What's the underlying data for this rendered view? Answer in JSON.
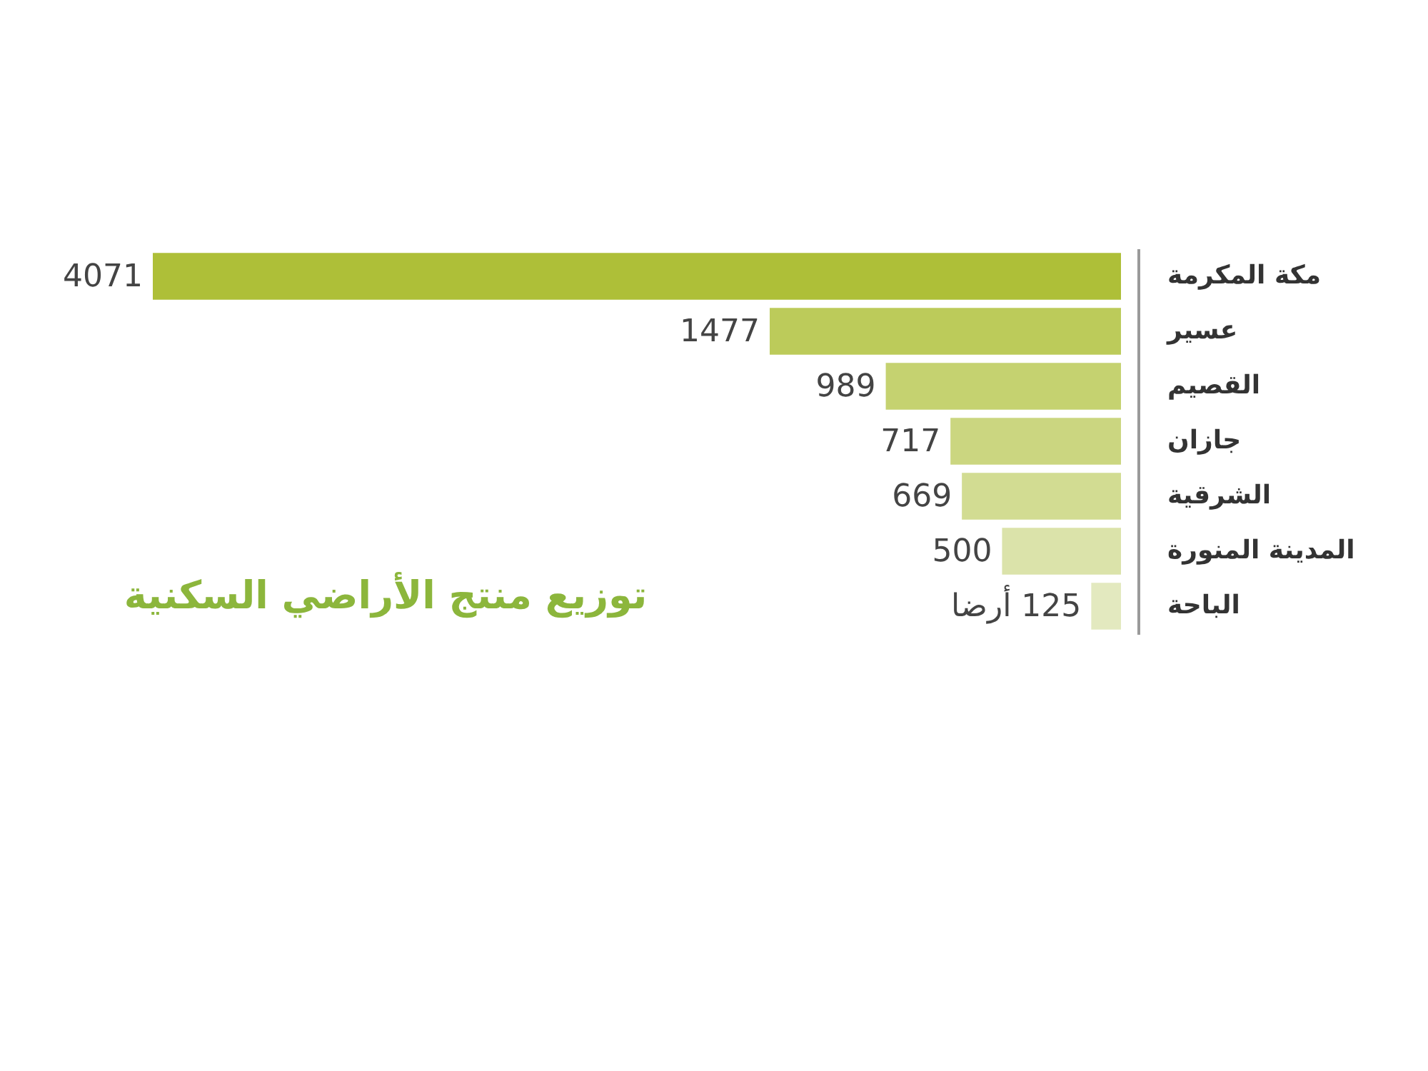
{
  "chart_data": {
    "type": "bar",
    "orientation": "horizontal",
    "title": "توزيع منتج الأراضي السكنية",
    "categories": [
      "مكة المكرمة",
      "عسير",
      "القصيم",
      "جازان",
      "الشرقية",
      "المدينة المنورة",
      "الباحة"
    ],
    "values": [
      4071,
      1477,
      989,
      717,
      669,
      500,
      125
    ],
    "colors": [
      "#aebf38",
      "#bccb5a",
      "#c5d270",
      "#cbd680",
      "#d2dc92",
      "#dbe3aa",
      "#e3e9bf"
    ],
    "value_labels": [
      "4071",
      "1477",
      "989",
      "717",
      "669",
      "500",
      "125 أرضا"
    ],
    "xlim": [
      4071,
      0
    ],
    "tick_labels": "y"
  }
}
